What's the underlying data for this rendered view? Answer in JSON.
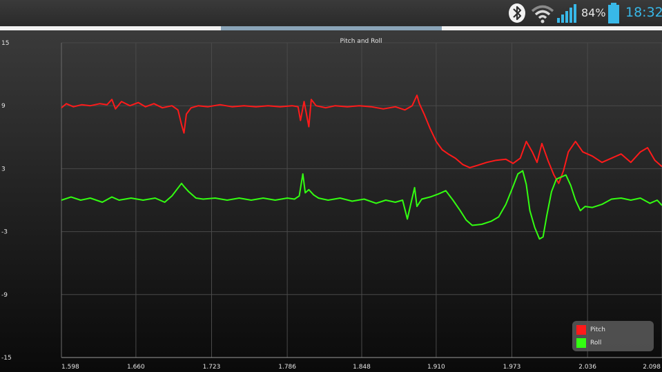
{
  "status_bar": {
    "battery_percent": "84%",
    "time": "18:32",
    "icons": [
      "bluetooth-icon",
      "wifi-icon",
      "signal-icon",
      "battery-icon"
    ],
    "clock_color": "#38b8e8"
  },
  "chart_data": {
    "type": "line",
    "title": "Pitch and Roll",
    "xlabel": "",
    "ylabel": "",
    "xlim": [
      1.598,
      2.098
    ],
    "ylim": [
      -15,
      15
    ],
    "x_tick_labels": [
      "1.598",
      "1.660",
      "1.723",
      "1.786",
      "1.848",
      "1.910",
      "1.973",
      "2.036",
      "2.098"
    ],
    "y_tick_labels": [
      "15",
      "9",
      "3",
      "-3",
      "-9",
      "-15"
    ],
    "x_ticks": [
      1.598,
      1.66,
      1.723,
      1.786,
      1.848,
      1.91,
      1.973,
      2.036,
      2.098
    ],
    "y_ticks": [
      15,
      9,
      3,
      -3,
      -9,
      -15
    ],
    "grid": true,
    "legend_position": "bottom-right",
    "series": [
      {
        "name": "Pitch",
        "color": "#ff1a1a",
        "points": [
          [
            1.598,
            8.8
          ],
          [
            1.602,
            9.2
          ],
          [
            1.608,
            8.9
          ],
          [
            1.615,
            9.1
          ],
          [
            1.622,
            9.0
          ],
          [
            1.63,
            9.2
          ],
          [
            1.636,
            9.1
          ],
          [
            1.64,
            9.6
          ],
          [
            1.643,
            8.7
          ],
          [
            1.648,
            9.4
          ],
          [
            1.655,
            9.0
          ],
          [
            1.662,
            9.3
          ],
          [
            1.668,
            8.9
          ],
          [
            1.675,
            9.2
          ],
          [
            1.682,
            8.8
          ],
          [
            1.69,
            9.0
          ],
          [
            1.695,
            8.6
          ],
          [
            1.698,
            7.2
          ],
          [
            1.7,
            6.4
          ],
          [
            1.702,
            8.2
          ],
          [
            1.706,
            8.8
          ],
          [
            1.712,
            9.0
          ],
          [
            1.72,
            8.9
          ],
          [
            1.73,
            9.1
          ],
          [
            1.74,
            8.9
          ],
          [
            1.75,
            9.0
          ],
          [
            1.76,
            8.9
          ],
          [
            1.77,
            9.0
          ],
          [
            1.78,
            8.9
          ],
          [
            1.79,
            9.0
          ],
          [
            1.795,
            8.9
          ],
          [
            1.797,
            7.6
          ],
          [
            1.8,
            9.4
          ],
          [
            1.802,
            8.2
          ],
          [
            1.804,
            7.0
          ],
          [
            1.806,
            9.6
          ],
          [
            1.81,
            9.0
          ],
          [
            1.818,
            8.8
          ],
          [
            1.826,
            9.0
          ],
          [
            1.836,
            8.9
          ],
          [
            1.846,
            9.0
          ],
          [
            1.856,
            8.9
          ],
          [
            1.866,
            8.7
          ],
          [
            1.876,
            8.9
          ],
          [
            1.884,
            8.6
          ],
          [
            1.89,
            9.0
          ],
          [
            1.894,
            10.0
          ],
          [
            1.896,
            9.2
          ],
          [
            1.9,
            8.2
          ],
          [
            1.905,
            6.8
          ],
          [
            1.91,
            5.6
          ],
          [
            1.915,
            4.8
          ],
          [
            1.92,
            4.4
          ],
          [
            1.926,
            4.0
          ],
          [
            1.932,
            3.4
          ],
          [
            1.938,
            3.1
          ],
          [
            1.944,
            3.3
          ],
          [
            1.952,
            3.6
          ],
          [
            1.96,
            3.8
          ],
          [
            1.968,
            3.9
          ],
          [
            1.974,
            3.5
          ],
          [
            1.98,
            4.0
          ],
          [
            1.985,
            5.6
          ],
          [
            1.99,
            4.6
          ],
          [
            1.994,
            3.6
          ],
          [
            1.998,
            5.4
          ],
          [
            2.003,
            3.8
          ],
          [
            2.008,
            2.4
          ],
          [
            2.012,
            1.6
          ],
          [
            2.016,
            2.8
          ],
          [
            2.02,
            4.6
          ],
          [
            2.026,
            5.6
          ],
          [
            2.032,
            4.6
          ],
          [
            2.04,
            4.2
          ],
          [
            2.048,
            3.6
          ],
          [
            2.056,
            4.0
          ],
          [
            2.064,
            4.4
          ],
          [
            2.072,
            3.6
          ],
          [
            2.08,
            4.6
          ],
          [
            2.086,
            5.0
          ],
          [
            2.092,
            3.8
          ],
          [
            2.098,
            3.2
          ]
        ]
      },
      {
        "name": "Roll",
        "color": "#33ff11",
        "points": [
          [
            1.598,
            0.0
          ],
          [
            1.606,
            0.3
          ],
          [
            1.614,
            0.0
          ],
          [
            1.622,
            0.2
          ],
          [
            1.632,
            -0.2
          ],
          [
            1.64,
            0.3
          ],
          [
            1.646,
            0.0
          ],
          [
            1.656,
            0.2
          ],
          [
            1.666,
            0.0
          ],
          [
            1.676,
            0.2
          ],
          [
            1.684,
            -0.2
          ],
          [
            1.69,
            0.4
          ],
          [
            1.694,
            1.0
          ],
          [
            1.698,
            1.6
          ],
          [
            1.7,
            1.3
          ],
          [
            1.704,
            0.8
          ],
          [
            1.71,
            0.2
          ],
          [
            1.716,
            0.1
          ],
          [
            1.726,
            0.2
          ],
          [
            1.736,
            0.0
          ],
          [
            1.746,
            0.2
          ],
          [
            1.756,
            0.0
          ],
          [
            1.766,
            0.2
          ],
          [
            1.776,
            0.0
          ],
          [
            1.786,
            0.2
          ],
          [
            1.792,
            0.1
          ],
          [
            1.796,
            0.4
          ],
          [
            1.799,
            2.5
          ],
          [
            1.801,
            0.7
          ],
          [
            1.804,
            1.0
          ],
          [
            1.808,
            0.5
          ],
          [
            1.812,
            0.2
          ],
          [
            1.82,
            0.0
          ],
          [
            1.83,
            0.2
          ],
          [
            1.84,
            -0.1
          ],
          [
            1.85,
            0.1
          ],
          [
            1.86,
            -0.3
          ],
          [
            1.868,
            0.0
          ],
          [
            1.876,
            -0.2
          ],
          [
            1.882,
            0.0
          ],
          [
            1.886,
            -1.8
          ],
          [
            1.889,
            -0.3
          ],
          [
            1.892,
            1.2
          ],
          [
            1.894,
            -0.6
          ],
          [
            1.898,
            0.1
          ],
          [
            1.905,
            0.3
          ],
          [
            1.912,
            0.6
          ],
          [
            1.918,
            0.9
          ],
          [
            1.924,
            0.0
          ],
          [
            1.93,
            -1.0
          ],
          [
            1.935,
            -1.9
          ],
          [
            1.94,
            -2.4
          ],
          [
            1.948,
            -2.3
          ],
          [
            1.956,
            -2.0
          ],
          [
            1.962,
            -1.6
          ],
          [
            1.968,
            -0.4
          ],
          [
            1.974,
            1.3
          ],
          [
            1.978,
            2.5
          ],
          [
            1.982,
            2.8
          ],
          [
            1.985,
            1.5
          ],
          [
            1.988,
            -1.0
          ],
          [
            1.992,
            -2.6
          ],
          [
            1.996,
            -3.7
          ],
          [
            1.999,
            -3.5
          ],
          [
            2.002,
            -1.5
          ],
          [
            2.006,
            0.8
          ],
          [
            2.01,
            2.0
          ],
          [
            2.014,
            2.2
          ],
          [
            2.018,
            2.4
          ],
          [
            2.022,
            1.4
          ],
          [
            2.026,
            0.0
          ],
          [
            2.03,
            -1.0
          ],
          [
            2.034,
            -0.6
          ],
          [
            2.04,
            -0.7
          ],
          [
            2.048,
            -0.4
          ],
          [
            2.056,
            0.1
          ],
          [
            2.064,
            0.2
          ],
          [
            2.072,
            0.0
          ],
          [
            2.08,
            0.2
          ],
          [
            2.088,
            -0.3
          ],
          [
            2.094,
            0.0
          ],
          [
            2.098,
            -0.5
          ]
        ]
      }
    ]
  }
}
